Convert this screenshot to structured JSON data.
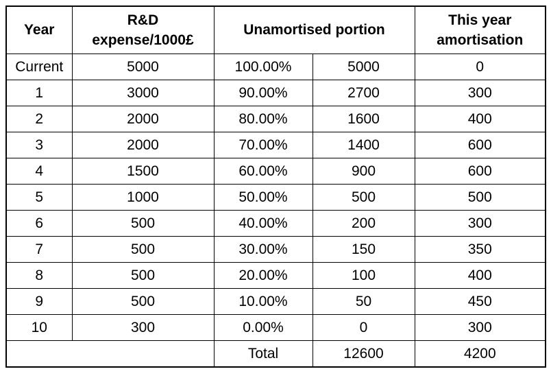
{
  "table": {
    "headers": {
      "year": "Year",
      "expense": "R&D\nexpense/1000£",
      "unamortised": "Unamortised portion",
      "amortisation": "This year\namortisation"
    },
    "rows": [
      {
        "year": "Current",
        "expense": "5000",
        "pct": "100.00%",
        "value": "5000",
        "amort": "0"
      },
      {
        "year": "1",
        "expense": "3000",
        "pct": "90.00%",
        "value": "2700",
        "amort": "300"
      },
      {
        "year": "2",
        "expense": "2000",
        "pct": "80.00%",
        "value": "1600",
        "amort": "400"
      },
      {
        "year": "3",
        "expense": "2000",
        "pct": "70.00%",
        "value": "1400",
        "amort": "600"
      },
      {
        "year": "4",
        "expense": "1500",
        "pct": "60.00%",
        "value": "900",
        "amort": "600"
      },
      {
        "year": "5",
        "expense": "1000",
        "pct": "50.00%",
        "value": "500",
        "amort": "500"
      },
      {
        "year": "6",
        "expense": "500",
        "pct": "40.00%",
        "value": "200",
        "amort": "300"
      },
      {
        "year": "7",
        "expense": "500",
        "pct": "30.00%",
        "value": "150",
        "amort": "350"
      },
      {
        "year": "8",
        "expense": "500",
        "pct": "20.00%",
        "value": "100",
        "amort": "400"
      },
      {
        "year": "9",
        "expense": "500",
        "pct": "10.00%",
        "value": "50",
        "amort": "450"
      },
      {
        "year": "10",
        "expense": "300",
        "pct": "0.00%",
        "value": "0",
        "amort": "300"
      }
    ],
    "total": {
      "label": "Total",
      "value": "12600",
      "amort": "4200"
    },
    "colors": {
      "border": "#000000",
      "text": "#000000",
      "background": "#ffffff"
    }
  }
}
